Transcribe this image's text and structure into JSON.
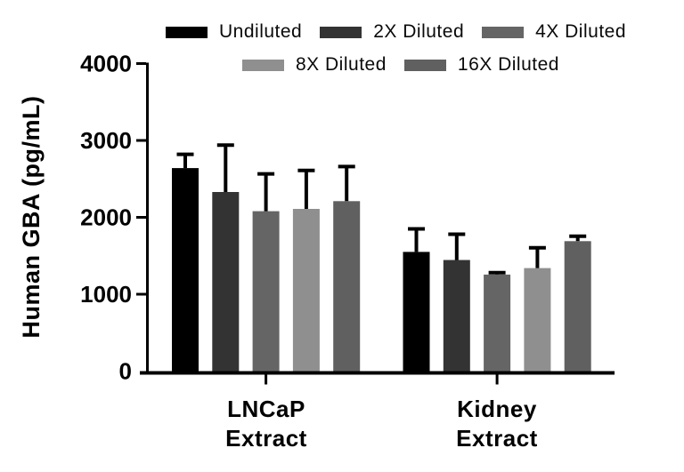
{
  "chart_data": {
    "type": "bar",
    "title": "",
    "ylabel": "Human GBA (pg/mL)",
    "xlabel": "",
    "ylim": [
      0,
      4000
    ],
    "yticks": [
      0,
      1000,
      2000,
      3000,
      4000
    ],
    "grid": false,
    "legend_position": "top",
    "error_bars": "upper +SD only",
    "axis_color": "#000000",
    "background_color": "#ffffff",
    "groups": [
      {
        "line1": "LNCaP",
        "line2": "Extract"
      },
      {
        "line1": "Kidney",
        "line2": "Extract"
      }
    ],
    "series": [
      {
        "name": "Undiluted",
        "color": "#000000",
        "values": [
          2640,
          1550
        ],
        "errors": [
          180,
          300
        ]
      },
      {
        "name": "2X Diluted",
        "color": "#333333",
        "values": [
          2330,
          1445
        ],
        "errors": [
          610,
          335
        ]
      },
      {
        "name": "4X Diluted",
        "color": "#656565",
        "values": [
          2080,
          1255
        ],
        "errors": [
          485,
          25
        ]
      },
      {
        "name": "8X Diluted",
        "color": "#8f8f8f",
        "values": [
          2110,
          1340
        ],
        "errors": [
          500,
          265
        ]
      },
      {
        "name": "16X Diluted",
        "color": "#606060",
        "values": [
          2210,
          1690
        ],
        "errors": [
          450,
          65
        ]
      }
    ]
  }
}
